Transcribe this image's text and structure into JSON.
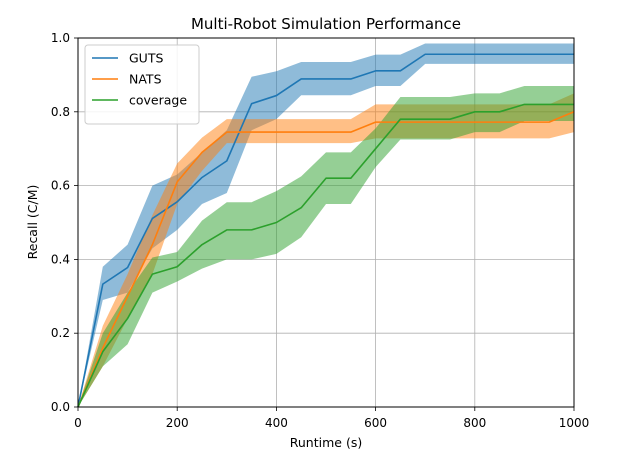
{
  "chart_data": {
    "type": "line",
    "title": "Multi-Robot Simulation Performance",
    "xlabel": "Runtime (s)",
    "ylabel": "Recall (C/M)",
    "xlim": [
      0,
      1000
    ],
    "ylim": [
      0,
      1.0
    ],
    "xticks": [
      "0",
      "200",
      "400",
      "600",
      "800",
      "1000"
    ],
    "yticks": [
      "0.0",
      "0.2",
      "0.4",
      "0.6",
      "0.8",
      "1.0"
    ],
    "grid": true,
    "legend_position": "top-left",
    "x": [
      0,
      50,
      100,
      150,
      200,
      250,
      300,
      350,
      400,
      450,
      500,
      550,
      600,
      650,
      700,
      750,
      800,
      850,
      900,
      950,
      1000
    ],
    "series": [
      {
        "name": "GUTS",
        "color": "#1f77b4",
        "values": [
          0,
          0.333,
          0.378,
          0.511,
          0.556,
          0.622,
          0.667,
          0.822,
          0.844,
          0.889,
          0.889,
          0.889,
          0.911,
          0.911,
          0.956,
          0.956,
          0.956,
          0.956,
          0.956,
          0.956,
          0.956
        ],
        "lower": [
          0,
          0.29,
          0.31,
          0.43,
          0.48,
          0.55,
          0.58,
          0.75,
          0.78,
          0.845,
          0.845,
          0.845,
          0.87,
          0.87,
          0.93,
          0.93,
          0.93,
          0.93,
          0.93,
          0.93,
          0.93
        ],
        "upper": [
          0,
          0.38,
          0.44,
          0.6,
          0.63,
          0.69,
          0.75,
          0.895,
          0.91,
          0.935,
          0.935,
          0.935,
          0.955,
          0.955,
          0.985,
          0.985,
          0.985,
          0.985,
          0.985,
          0.985,
          0.985
        ]
      },
      {
        "name": "NATS",
        "color": "#ff7f0e",
        "values": [
          0,
          0.16,
          0.3,
          0.44,
          0.61,
          0.69,
          0.745,
          0.745,
          0.745,
          0.745,
          0.745,
          0.745,
          0.772,
          0.772,
          0.772,
          0.772,
          0.772,
          0.772,
          0.772,
          0.772,
          0.8
        ],
        "lower": [
          0,
          0.11,
          0.24,
          0.36,
          0.55,
          0.64,
          0.715,
          0.715,
          0.715,
          0.715,
          0.715,
          0.715,
          0.728,
          0.728,
          0.728,
          0.728,
          0.728,
          0.728,
          0.728,
          0.728,
          0.745
        ],
        "upper": [
          0,
          0.22,
          0.36,
          0.52,
          0.66,
          0.73,
          0.78,
          0.78,
          0.78,
          0.78,
          0.78,
          0.78,
          0.82,
          0.82,
          0.82,
          0.82,
          0.82,
          0.82,
          0.82,
          0.82,
          0.85
        ]
      },
      {
        "name": "coverage",
        "color": "#2ca02c",
        "values": [
          0,
          0.15,
          0.24,
          0.36,
          0.38,
          0.44,
          0.48,
          0.48,
          0.5,
          0.54,
          0.62,
          0.62,
          0.7,
          0.78,
          0.78,
          0.78,
          0.8,
          0.8,
          0.82,
          0.82,
          0.82
        ],
        "lower": [
          0,
          0.11,
          0.17,
          0.31,
          0.34,
          0.375,
          0.4,
          0.4,
          0.415,
          0.46,
          0.55,
          0.55,
          0.65,
          0.725,
          0.725,
          0.725,
          0.745,
          0.745,
          0.775,
          0.775,
          0.775
        ],
        "upper": [
          0,
          0.2,
          0.31,
          0.405,
          0.42,
          0.505,
          0.555,
          0.555,
          0.585,
          0.625,
          0.69,
          0.69,
          0.755,
          0.84,
          0.84,
          0.84,
          0.85,
          0.85,
          0.87,
          0.87,
          0.87
        ]
      }
    ]
  }
}
